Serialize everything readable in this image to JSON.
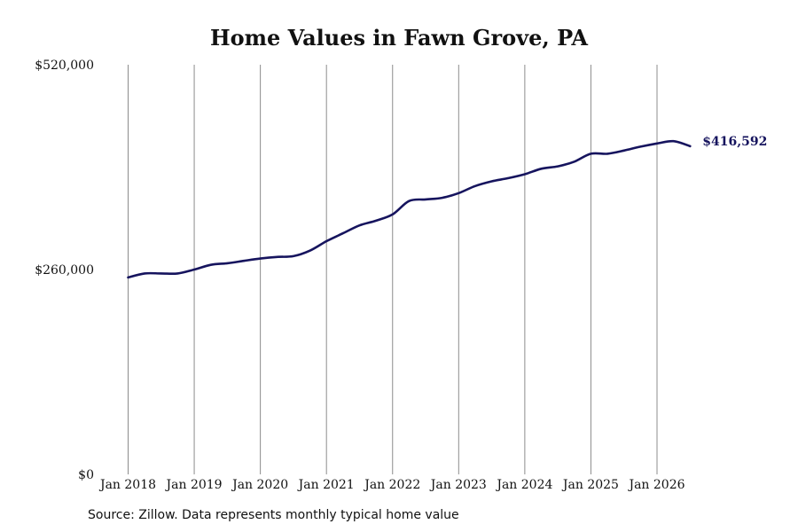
{
  "chart_data": {
    "type": "line",
    "title": "Home Values in Fawn Grove, PA",
    "xlabel": "",
    "ylabel": "",
    "ylim": [
      0,
      520000
    ],
    "y_ticks": [
      0,
      260000,
      520000
    ],
    "y_tick_labels": [
      "$0",
      "$260,000",
      "$520,000"
    ],
    "x_ticks": [
      "2018-01",
      "2019-01",
      "2020-01",
      "2021-01",
      "2022-01",
      "2023-01",
      "2024-01",
      "2025-01",
      "2026-01"
    ],
    "x_tick_labels": [
      "Jan 2018",
      "Jan 2019",
      "Jan 2020",
      "Jan 2021",
      "Jan 2022",
      "Jan 2023",
      "Jan 2024",
      "Jan 2025",
      "Jan 2026"
    ],
    "grid": "vertical",
    "line_color": "#16145e",
    "end_label": "$416,592",
    "series": [
      {
        "x": [
          "2018-01",
          "2018-04",
          "2018-07",
          "2018-10",
          "2019-01",
          "2019-04",
          "2019-07",
          "2019-10",
          "2020-01",
          "2020-04",
          "2020-07",
          "2020-10",
          "2021-01",
          "2021-04",
          "2021-07",
          "2021-10",
          "2022-01",
          "2022-04",
          "2022-07",
          "2022-10",
          "2023-01",
          "2023-04",
          "2023-07",
          "2023-10",
          "2024-01",
          "2024-04",
          "2024-07",
          "2024-10",
          "2025-01",
          "2025-04",
          "2025-07",
          "2025-10",
          "2026-01",
          "2026-04",
          "2026-07"
        ],
        "values": [
          250000,
          255000,
          255000,
          255000,
          260000,
          266000,
          268000,
          271000,
          274000,
          276000,
          277000,
          284000,
          296000,
          306000,
          316000,
          322000,
          330000,
          347000,
          349000,
          351000,
          357000,
          366000,
          372000,
          376000,
          381000,
          388000,
          391000,
          397000,
          407000,
          407000,
          411000,
          416000,
          420000,
          423000,
          416592
        ]
      }
    ]
  },
  "source": "Source: Zillow. Data represents monthly typical home value"
}
